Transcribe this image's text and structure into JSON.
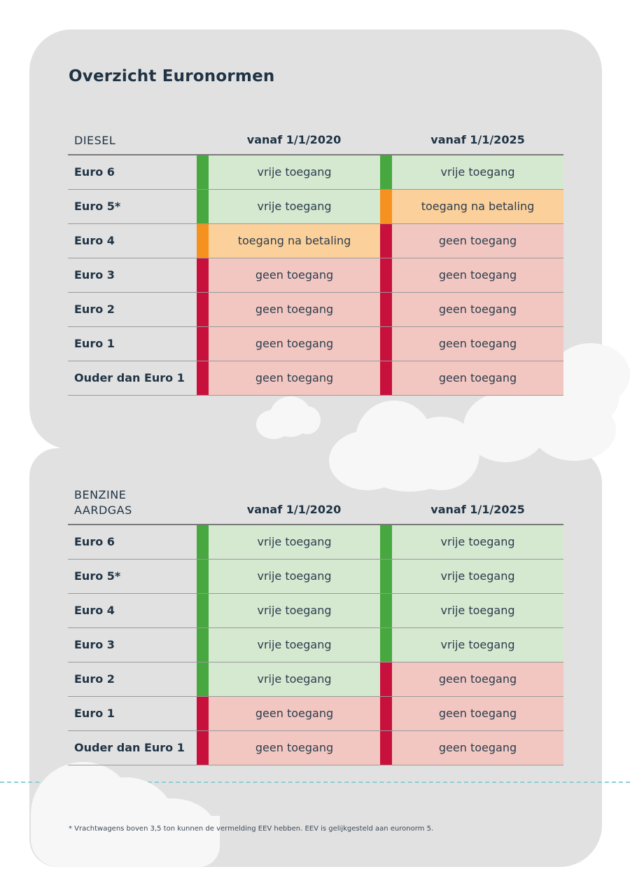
{
  "title": "Overzicht Euronormen",
  "tables": [
    {
      "header": {
        "fuel": [
          "DIESEL"
        ],
        "col1": "vanaf 1/1/2020",
        "col2": "vanaf 1/1/2025"
      },
      "rows": [
        {
          "label": "Euro 6",
          "c1": {
            "text": "vrije toegang",
            "status": "free"
          },
          "c2": {
            "text": "vrije toegang",
            "status": "free"
          }
        },
        {
          "label": "Euro 5*",
          "c1": {
            "text": "vrije toegang",
            "status": "free"
          },
          "c2": {
            "text": "toegang na betaling",
            "status": "pay"
          }
        },
        {
          "label": "Euro 4",
          "c1": {
            "text": "toegang na betaling",
            "status": "pay"
          },
          "c2": {
            "text": "geen toegang",
            "status": "none"
          }
        },
        {
          "label": "Euro 3",
          "c1": {
            "text": "geen toegang",
            "status": "none"
          },
          "c2": {
            "text": "geen toegang",
            "status": "none"
          }
        },
        {
          "label": "Euro 2",
          "c1": {
            "text": "geen toegang",
            "status": "none"
          },
          "c2": {
            "text": "geen toegang",
            "status": "none"
          }
        },
        {
          "label": "Euro 1",
          "c1": {
            "text": "geen toegang",
            "status": "none"
          },
          "c2": {
            "text": "geen toegang",
            "status": "none"
          }
        },
        {
          "label": "Ouder dan Euro 1",
          "c1": {
            "text": "geen toegang",
            "status": "none"
          },
          "c2": {
            "text": "geen toegang",
            "status": "none"
          }
        }
      ]
    },
    {
      "header": {
        "fuel": [
          "BENZINE",
          "AARDGAS"
        ],
        "col1": "vanaf 1/1/2020",
        "col2": "vanaf 1/1/2025"
      },
      "rows": [
        {
          "label": "Euro 6",
          "c1": {
            "text": "vrije toegang",
            "status": "free"
          },
          "c2": {
            "text": "vrije toegang",
            "status": "free"
          }
        },
        {
          "label": "Euro 5*",
          "c1": {
            "text": "vrije toegang",
            "status": "free"
          },
          "c2": {
            "text": "vrije toegang",
            "status": "free"
          }
        },
        {
          "label": "Euro 4",
          "c1": {
            "text": "vrije toegang",
            "status": "free"
          },
          "c2": {
            "text": "vrije toegang",
            "status": "free"
          }
        },
        {
          "label": "Euro 3",
          "c1": {
            "text": "vrije toegang",
            "status": "free"
          },
          "c2": {
            "text": "vrije toegang",
            "status": "free"
          }
        },
        {
          "label": "Euro 2",
          "c1": {
            "text": "vrije toegang",
            "status": "free"
          },
          "c2": {
            "text": "geen toegang",
            "status": "none"
          }
        },
        {
          "label": "Euro 1",
          "c1": {
            "text": "geen toegang",
            "status": "none"
          },
          "c2": {
            "text": "geen toegang",
            "status": "none"
          }
        },
        {
          "label": "Ouder dan Euro 1",
          "c1": {
            "text": "geen toegang",
            "status": "none"
          },
          "c2": {
            "text": "geen toegang",
            "status": "none"
          }
        }
      ]
    }
  ],
  "colors": {
    "free": "#46a83f",
    "pay": "#f5911e",
    "none": "#c8103c"
  },
  "footnote": "* Vrachtwagens boven 3,5 ton kunnen de vermelding EEV hebben. EEV is gelijkgesteld aan euronorm 5."
}
